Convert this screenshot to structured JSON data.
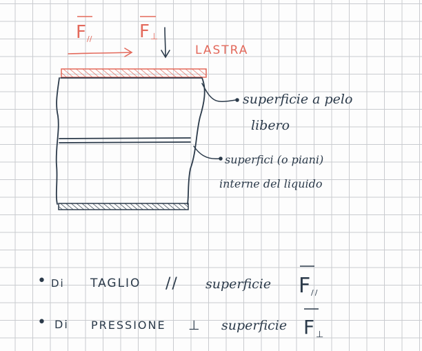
{
  "colors": {
    "ink": "#2b3a4a",
    "red_ink": "#e3695b",
    "grid": "#c9cbcf",
    "paper": "#fdfdfd"
  },
  "forces": {
    "parallel_label": "F",
    "parallel_sub": "//",
    "perpendicular_label": "F",
    "perpendicular_sub": "⊥"
  },
  "plate_label": "LASTRA",
  "annotations": {
    "free_surface_line1": "superficie a pelo",
    "free_surface_line2": "libero",
    "internal_surfaces_line1": "superfici (o piani)",
    "internal_surfaces_line2": "interne del liquido"
  },
  "bullets": [
    {
      "marker": "•",
      "prefix": "Di",
      "type": "TAGLIO",
      "relation": "//",
      "word": "superficie",
      "force": "F",
      "force_sub": "//"
    },
    {
      "marker": "•",
      "prefix": "Di",
      "type": "PRESSIONE",
      "relation": "⊥",
      "word": "superficie",
      "force": "F",
      "force_sub": "⊥"
    }
  ]
}
